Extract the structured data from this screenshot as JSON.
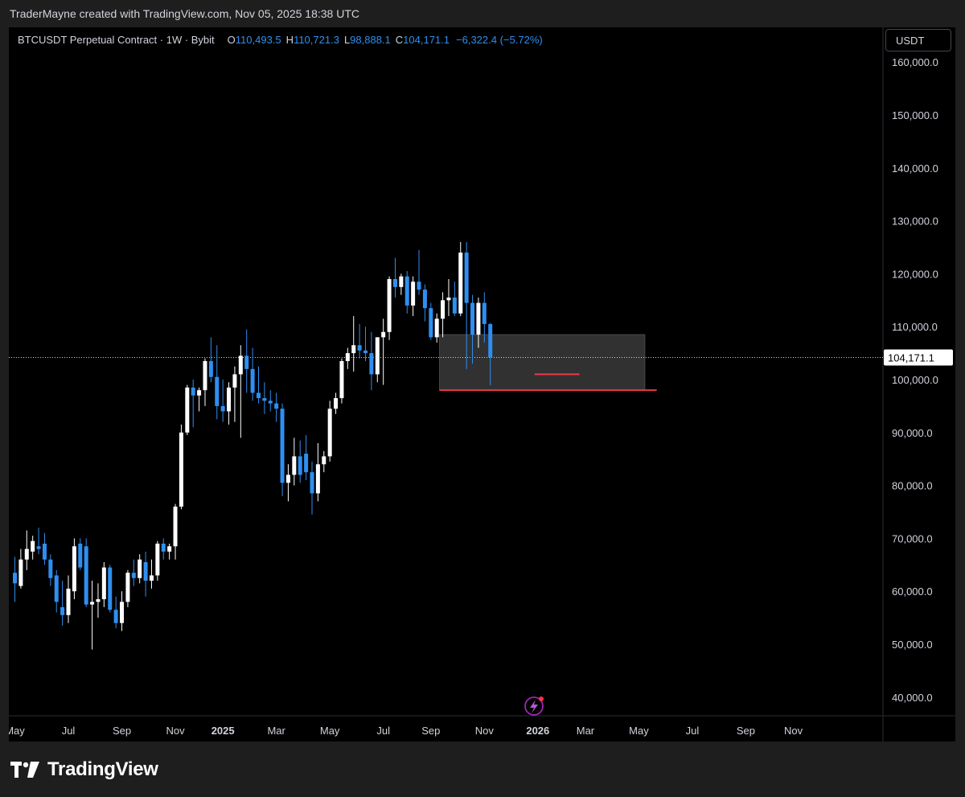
{
  "header": {
    "credit": "TraderMayne created with TradingView.com, Nov 05, 2025 18:38 UTC"
  },
  "legend": {
    "symbol": "BTCUSDT Perpetual Contract · 1W · Bybit",
    "open_label": "O",
    "open": "110,493.5",
    "high_label": "H",
    "high": "110,721.3",
    "low_label": "L",
    "low": "98,888.1",
    "close_label": "C",
    "close": "104,171.1",
    "change": "−6,322.4 (−5.72%)"
  },
  "currency_button": {
    "label": "USDT"
  },
  "footer": {
    "brand": "TradingView",
    "logo_icon": "tradingview-logo-icon"
  },
  "colors": {
    "up": "#ffffff",
    "down": "#2e8ff0",
    "zone": "#3a3a3a",
    "support": "#f23645",
    "last_price": "#ffffff"
  },
  "chart_data": {
    "type": "candlestick",
    "title": "",
    "xlabel": "",
    "ylabel": "",
    "ylim": [
      36000,
      164000
    ],
    "y_ticks": [
      {
        "value": 40000,
        "label": "40,000.0"
      },
      {
        "value": 50000,
        "label": "50,000.0"
      },
      {
        "value": 60000,
        "label": "60,000.0"
      },
      {
        "value": 70000,
        "label": "70,000.0"
      },
      {
        "value": 80000,
        "label": "80,000.0"
      },
      {
        "value": 90000,
        "label": "90,000.0"
      },
      {
        "value": 100000,
        "label": "100,000.0"
      },
      {
        "value": 110000,
        "label": "110,000.0"
      },
      {
        "value": 120000,
        "label": "120,000.0"
      },
      {
        "value": 130000,
        "label": "130,000.0"
      },
      {
        "value": 140000,
        "label": "140,000.0"
      },
      {
        "value": 150000,
        "label": "150,000.0"
      },
      {
        "value": 160000,
        "label": "160,000.0"
      }
    ],
    "x_ticks": [
      {
        "week": 0,
        "label": "May",
        "bold": false
      },
      {
        "week": 9,
        "label": "Jul",
        "bold": false
      },
      {
        "week": 18,
        "label": "Sep",
        "bold": false
      },
      {
        "week": 27,
        "label": "Nov",
        "bold": false
      },
      {
        "week": 35,
        "label": "2025",
        "bold": true
      },
      {
        "week": 44,
        "label": "Mar",
        "bold": false
      },
      {
        "week": 53,
        "label": "May",
        "bold": false
      },
      {
        "week": 62,
        "label": "Jul",
        "bold": false
      },
      {
        "week": 70,
        "label": "Sep",
        "bold": false
      },
      {
        "week": 79,
        "label": "Nov",
        "bold": false
      },
      {
        "week": 88,
        "label": "2026",
        "bold": true
      },
      {
        "week": 96,
        "label": "Mar",
        "bold": false
      },
      {
        "week": 105,
        "label": "May",
        "bold": false
      },
      {
        "week": 114,
        "label": "Jul",
        "bold": false
      },
      {
        "week": 123,
        "label": "Sep",
        "bold": false
      },
      {
        "week": 131,
        "label": "Nov",
        "bold": false
      }
    ],
    "last_price": {
      "value": 104171.1,
      "label": "104,171.1"
    },
    "candles": [
      {
        "o": 63500,
        "h": 66500,
        "l": 58000,
        "c": 61500
      },
      {
        "o": 61000,
        "h": 68000,
        "l": 60500,
        "c": 66000
      },
      {
        "o": 66000,
        "h": 71500,
        "l": 64000,
        "c": 68000
      },
      {
        "o": 67500,
        "h": 70500,
        "l": 66000,
        "c": 69500
      },
      {
        "o": 68500,
        "h": 72000,
        "l": 67000,
        "c": 68000
      },
      {
        "o": 69000,
        "h": 71000,
        "l": 65000,
        "c": 66000
      },
      {
        "o": 66000,
        "h": 67000,
        "l": 61000,
        "c": 62500
      },
      {
        "o": 63000,
        "h": 64000,
        "l": 56000,
        "c": 58000
      },
      {
        "o": 57000,
        "h": 62000,
        "l": 53500,
        "c": 55500
      },
      {
        "o": 55500,
        "h": 63000,
        "l": 54000,
        "c": 60500
      },
      {
        "o": 60000,
        "h": 70000,
        "l": 58500,
        "c": 68500
      },
      {
        "o": 69000,
        "h": 70000,
        "l": 64000,
        "c": 64500
      },
      {
        "o": 68500,
        "h": 70000,
        "l": 57000,
        "c": 57500
      },
      {
        "o": 57500,
        "h": 62000,
        "l": 49000,
        "c": 58000
      },
      {
        "o": 58000,
        "h": 61500,
        "l": 55000,
        "c": 58500
      },
      {
        "o": 58500,
        "h": 65500,
        "l": 57000,
        "c": 64500
      },
      {
        "o": 64500,
        "h": 65000,
        "l": 56000,
        "c": 56500
      },
      {
        "o": 56500,
        "h": 59000,
        "l": 53000,
        "c": 54000
      },
      {
        "o": 54000,
        "h": 60000,
        "l": 52500,
        "c": 58000
      },
      {
        "o": 58000,
        "h": 64000,
        "l": 57000,
        "c": 63500
      },
      {
        "o": 63500,
        "h": 66000,
        "l": 61000,
        "c": 62500
      },
      {
        "o": 62500,
        "h": 67000,
        "l": 61500,
        "c": 66000
      },
      {
        "o": 65500,
        "h": 67500,
        "l": 59000,
        "c": 62000
      },
      {
        "o": 62000,
        "h": 66000,
        "l": 60500,
        "c": 63000
      },
      {
        "o": 63000,
        "h": 69500,
        "l": 62000,
        "c": 69000
      },
      {
        "o": 69000,
        "h": 70000,
        "l": 66000,
        "c": 67500
      },
      {
        "o": 67500,
        "h": 69000,
        "l": 66000,
        "c": 68500
      },
      {
        "o": 68500,
        "h": 76500,
        "l": 66000,
        "c": 76000
      },
      {
        "o": 76000,
        "h": 91500,
        "l": 75500,
        "c": 90000
      },
      {
        "o": 90000,
        "h": 99000,
        "l": 89500,
        "c": 98500
      },
      {
        "o": 98500,
        "h": 100000,
        "l": 91000,
        "c": 97000
      },
      {
        "o": 97000,
        "h": 98500,
        "l": 94000,
        "c": 98000
      },
      {
        "o": 98000,
        "h": 104000,
        "l": 95000,
        "c": 103500
      },
      {
        "o": 103500,
        "h": 108000,
        "l": 99500,
        "c": 100500
      },
      {
        "o": 100500,
        "h": 106500,
        "l": 92500,
        "c": 95000
      },
      {
        "o": 95000,
        "h": 100000,
        "l": 92000,
        "c": 94000
      },
      {
        "o": 94000,
        "h": 99500,
        "l": 91500,
        "c": 98500
      },
      {
        "o": 98500,
        "h": 102500,
        "l": 92000,
        "c": 101000
      },
      {
        "o": 101000,
        "h": 106500,
        "l": 89000,
        "c": 104500
      },
      {
        "o": 104500,
        "h": 109500,
        "l": 97500,
        "c": 102000
      },
      {
        "o": 102000,
        "h": 106000,
        "l": 96000,
        "c": 97500
      },
      {
        "o": 97500,
        "h": 102500,
        "l": 95500,
        "c": 96500
      },
      {
        "o": 96500,
        "h": 99500,
        "l": 93500,
        "c": 96000
      },
      {
        "o": 96000,
        "h": 98000,
        "l": 94000,
        "c": 95500
      },
      {
        "o": 95500,
        "h": 97500,
        "l": 92000,
        "c": 94500
      },
      {
        "o": 94500,
        "h": 95500,
        "l": 78000,
        "c": 80500
      },
      {
        "o": 80500,
        "h": 84000,
        "l": 77000,
        "c": 82000
      },
      {
        "o": 82000,
        "h": 89000,
        "l": 80000,
        "c": 85500
      },
      {
        "o": 85500,
        "h": 88500,
        "l": 80500,
        "c": 82000
      },
      {
        "o": 86000,
        "h": 89500,
        "l": 81000,
        "c": 82500
      },
      {
        "o": 82500,
        "h": 84500,
        "l": 74500,
        "c": 78500
      },
      {
        "o": 78500,
        "h": 88000,
        "l": 77000,
        "c": 84000
      },
      {
        "o": 84000,
        "h": 86500,
        "l": 82500,
        "c": 85500
      },
      {
        "o": 85500,
        "h": 96000,
        "l": 84500,
        "c": 94500
      },
      {
        "o": 94500,
        "h": 97500,
        "l": 93500,
        "c": 96500
      },
      {
        "o": 96500,
        "h": 104000,
        "l": 95500,
        "c": 103500
      },
      {
        "o": 103500,
        "h": 106000,
        "l": 102000,
        "c": 105000
      },
      {
        "o": 105000,
        "h": 112000,
        "l": 101500,
        "c": 106500
      },
      {
        "o": 106500,
        "h": 110500,
        "l": 104000,
        "c": 105500
      },
      {
        "o": 105500,
        "h": 110000,
        "l": 103500,
        "c": 105000
      },
      {
        "o": 105000,
        "h": 109000,
        "l": 98000,
        "c": 101000
      },
      {
        "o": 101000,
        "h": 108000,
        "l": 99500,
        "c": 108000
      },
      {
        "o": 108000,
        "h": 111500,
        "l": 99000,
        "c": 109000
      },
      {
        "o": 109000,
        "h": 119500,
        "l": 107500,
        "c": 119000
      },
      {
        "o": 119000,
        "h": 123000,
        "l": 115500,
        "c": 117500
      },
      {
        "o": 117500,
        "h": 120000,
        "l": 116000,
        "c": 119500
      },
      {
        "o": 119500,
        "h": 120500,
        "l": 112500,
        "c": 114000
      },
      {
        "o": 114000,
        "h": 119500,
        "l": 112000,
        "c": 118500
      },
      {
        "o": 118500,
        "h": 124500,
        "l": 116000,
        "c": 117000
      },
      {
        "o": 117000,
        "h": 118000,
        "l": 111000,
        "c": 113500
      },
      {
        "o": 113500,
        "h": 114500,
        "l": 107500,
        "c": 108000
      },
      {
        "o": 108000,
        "h": 112500,
        "l": 107000,
        "c": 111500
      },
      {
        "o": 111500,
        "h": 116500,
        "l": 108000,
        "c": 115000
      },
      {
        "o": 115000,
        "h": 119000,
        "l": 112000,
        "c": 115500
      },
      {
        "o": 115500,
        "h": 118500,
        "l": 112000,
        "c": 112500
      },
      {
        "o": 112500,
        "h": 126000,
        "l": 112000,
        "c": 124000
      },
      {
        "o": 124000,
        "h": 126000,
        "l": 102000,
        "c": 114500
      },
      {
        "o": 114500,
        "h": 116000,
        "l": 103000,
        "c": 108500
      },
      {
        "o": 108500,
        "h": 115500,
        "l": 106000,
        "c": 114500
      },
      {
        "o": 114500,
        "h": 116500,
        "l": 107000,
        "c": 110500
      },
      {
        "o": 110500,
        "h": 110700,
        "l": 98900,
        "c": 104200
      }
    ],
    "annotations": [
      {
        "type": "zone",
        "from_week": 72,
        "to_week": 106,
        "y_low": 98000,
        "y_high": 108500
      },
      {
        "type": "support_line",
        "from_week": 72,
        "to_week": 108,
        "y": 98000
      },
      {
        "type": "low_marker",
        "from_week": 88,
        "to_week": 95,
        "y": 101000
      }
    ]
  }
}
